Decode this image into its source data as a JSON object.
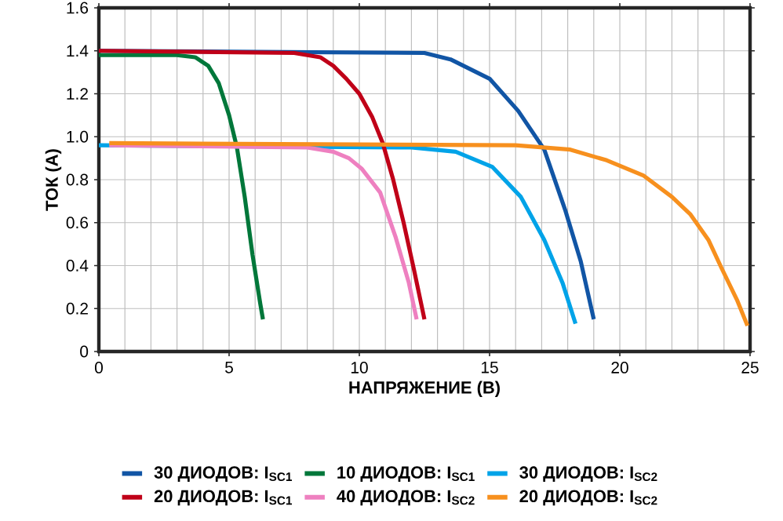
{
  "chart_data": {
    "type": "line",
    "xlabel": "НАПРЯЖЕНИЕ (В)",
    "ylabel": "ТОК (А)",
    "xlim": [
      0,
      25
    ],
    "ylim": [
      0,
      1.6
    ],
    "xticks": [
      0,
      5,
      10,
      15,
      20,
      25
    ],
    "yticks": [
      0,
      0.2,
      0.4,
      0.6,
      0.8,
      {
        "value": 1,
        "label": "1.0"
      },
      1.2,
      1.4,
      1.6
    ],
    "grid": true,
    "legend": "bottom",
    "marker": "none",
    "line_style": "solid",
    "series": [
      {
        "name": "30 ДИОДОВ: I$_{SC1}$",
        "color": "#1155a5",
        "x": [
          0,
          12.5,
          13.5,
          15,
          16.1,
          17.1,
          17.9,
          18.5,
          19
        ],
        "values": [
          1.4,
          1.39,
          1.36,
          1.27,
          1.12,
          0.94,
          0.66,
          0.42,
          0.15
        ]
      },
      {
        "name": "10 ДИОДОВ: I$_{SC1}$",
        "color": "#00773a",
        "x": [
          0,
          3,
          3.7,
          4.2,
          4.6,
          5,
          5.3,
          5.6,
          5.9,
          6.2,
          6.3
        ],
        "values": [
          1.38,
          1.38,
          1.37,
          1.33,
          1.25,
          1.1,
          0.95,
          0.72,
          0.45,
          0.22,
          0.15
        ]
      },
      {
        "name": "30 ДИОДОВ: I$_{SC2}$",
        "color": "#00a3e8",
        "x": [
          0,
          12,
          13.7,
          15.1,
          16.2,
          17.1,
          17.8,
          18.3
        ],
        "values": [
          0.96,
          0.95,
          0.93,
          0.86,
          0.72,
          0.52,
          0.32,
          0.13
        ]
      },
      {
        "name": "20 ДИОДОВ: I$_{SC1}$",
        "color": "#c00018",
        "x": [
          0,
          7.5,
          8.5,
          9,
          9.5,
          10,
          10.5,
          10.9,
          11.3,
          11.7,
          12.1,
          12.5
        ],
        "values": [
          1.4,
          1.39,
          1.37,
          1.33,
          1.27,
          1.2,
          1.09,
          0.97,
          0.8,
          0.6,
          0.38,
          0.15
        ]
      },
      {
        "name": "40 ДИОДОВ: I$_{SC2}$",
        "color": "#ee80c0",
        "x": [
          0.4,
          8,
          9,
          9.6,
          10.1,
          10.8,
          11.4,
          11.9,
          12.2
        ],
        "values": [
          0.96,
          0.95,
          0.93,
          0.9,
          0.85,
          0.74,
          0.53,
          0.32,
          0.15
        ]
      },
      {
        "name": "20 ДИОДОВ: I$_{SC2}$",
        "color": "#f7901e",
        "x": [
          0.4,
          16,
          18.1,
          19.5,
          20.9,
          22,
          22.7,
          23.4,
          23.9,
          24.5,
          24.9
        ],
        "values": [
          0.97,
          0.96,
          0.94,
          0.89,
          0.82,
          0.72,
          0.64,
          0.52,
          0.39,
          0.24,
          0.12
        ]
      }
    ]
  }
}
